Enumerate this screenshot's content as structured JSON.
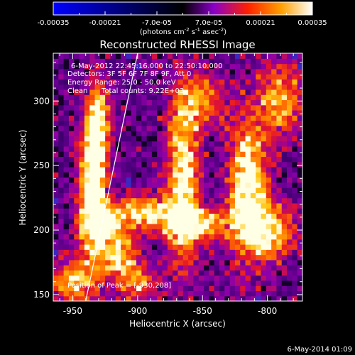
{
  "chart_data": {
    "type": "heatmap",
    "title": "Reconstructed RHESSI Image",
    "colorbar": {
      "ticks": [
        "-0.00035",
        "-0.00021",
        "-7.0e-05",
        "7.0e-05",
        "0.00021",
        "0.00035"
      ],
      "unit_main": "(photons cm",
      "unit_exp1": "-2",
      "unit_mid": " s",
      "unit_exp2": "-1",
      "unit_mid2": " asec",
      "unit_exp3": "-2",
      "unit_end": ")",
      "range": [
        -0.00035,
        0.00035
      ]
    },
    "info": {
      "time": "6-May-2012 22:45:16.000 to 22:50:10.000",
      "detectors": "Detectors: 3F 5F 6F 7F 8F 9F, Att 0",
      "energy": "Energy Range: 25.0 - 50.0 keV",
      "method": "Clean",
      "counts": "Total counts: 9.22E+03",
      "peak": "Position of Peak = [-930,208]"
    },
    "xlabel": "Heliocentric X (arcsec)",
    "ylabel": "Heliocentric Y (arcsec)",
    "xlim": [
      -965,
      -773
    ],
    "ylim": [
      145,
      337
    ],
    "xticks": [
      -950,
      -900,
      -850,
      -800
    ],
    "yticks": [
      150,
      200,
      250,
      300
    ],
    "xtick_labels": [
      "-950",
      "-900",
      "-850",
      "-800"
    ],
    "ytick_labels": [
      "150",
      "200",
      "250",
      "300"
    ],
    "peak": [
      -930,
      208
    ],
    "limb_line": [
      [
        -940,
        145
      ],
      [
        -900,
        337
      ]
    ],
    "sources": [
      {
        "x": -935,
        "y": 230,
        "sx": 7,
        "sy": 40,
        "amp": 0.92
      },
      {
        "x": -925,
        "y": 205,
        "sx": 9,
        "sy": 8,
        "amp": 0.85
      },
      {
        "x": -915,
        "y": 180,
        "sx": 10,
        "sy": 12,
        "amp": 0.7
      },
      {
        "x": -930,
        "y": 280,
        "sx": 6,
        "sy": 22,
        "amp": 0.65
      },
      {
        "x": -895,
        "y": 215,
        "sx": 15,
        "sy": 9,
        "amp": 0.7
      },
      {
        "x": -865,
        "y": 240,
        "sx": 8,
        "sy": 45,
        "amp": 0.8
      },
      {
        "x": -855,
        "y": 205,
        "sx": 18,
        "sy": 9,
        "amp": 0.72
      },
      {
        "x": -815,
        "y": 235,
        "sx": 10,
        "sy": 35,
        "amp": 0.8
      },
      {
        "x": -800,
        "y": 200,
        "sx": 14,
        "sy": 15,
        "amp": 0.7
      },
      {
        "x": -790,
        "y": 300,
        "sx": 12,
        "sy": 20,
        "amp": 0.55
      },
      {
        "x": -850,
        "y": 300,
        "sx": 14,
        "sy": 14,
        "amp": 0.45
      },
      {
        "x": -950,
        "y": 160,
        "sx": 12,
        "sy": 12,
        "amp": 0.55
      },
      {
        "x": -900,
        "y": 160,
        "sx": 10,
        "sy": 10,
        "amp": 0.5
      }
    ],
    "footer": "6-May-2014 01:09"
  }
}
